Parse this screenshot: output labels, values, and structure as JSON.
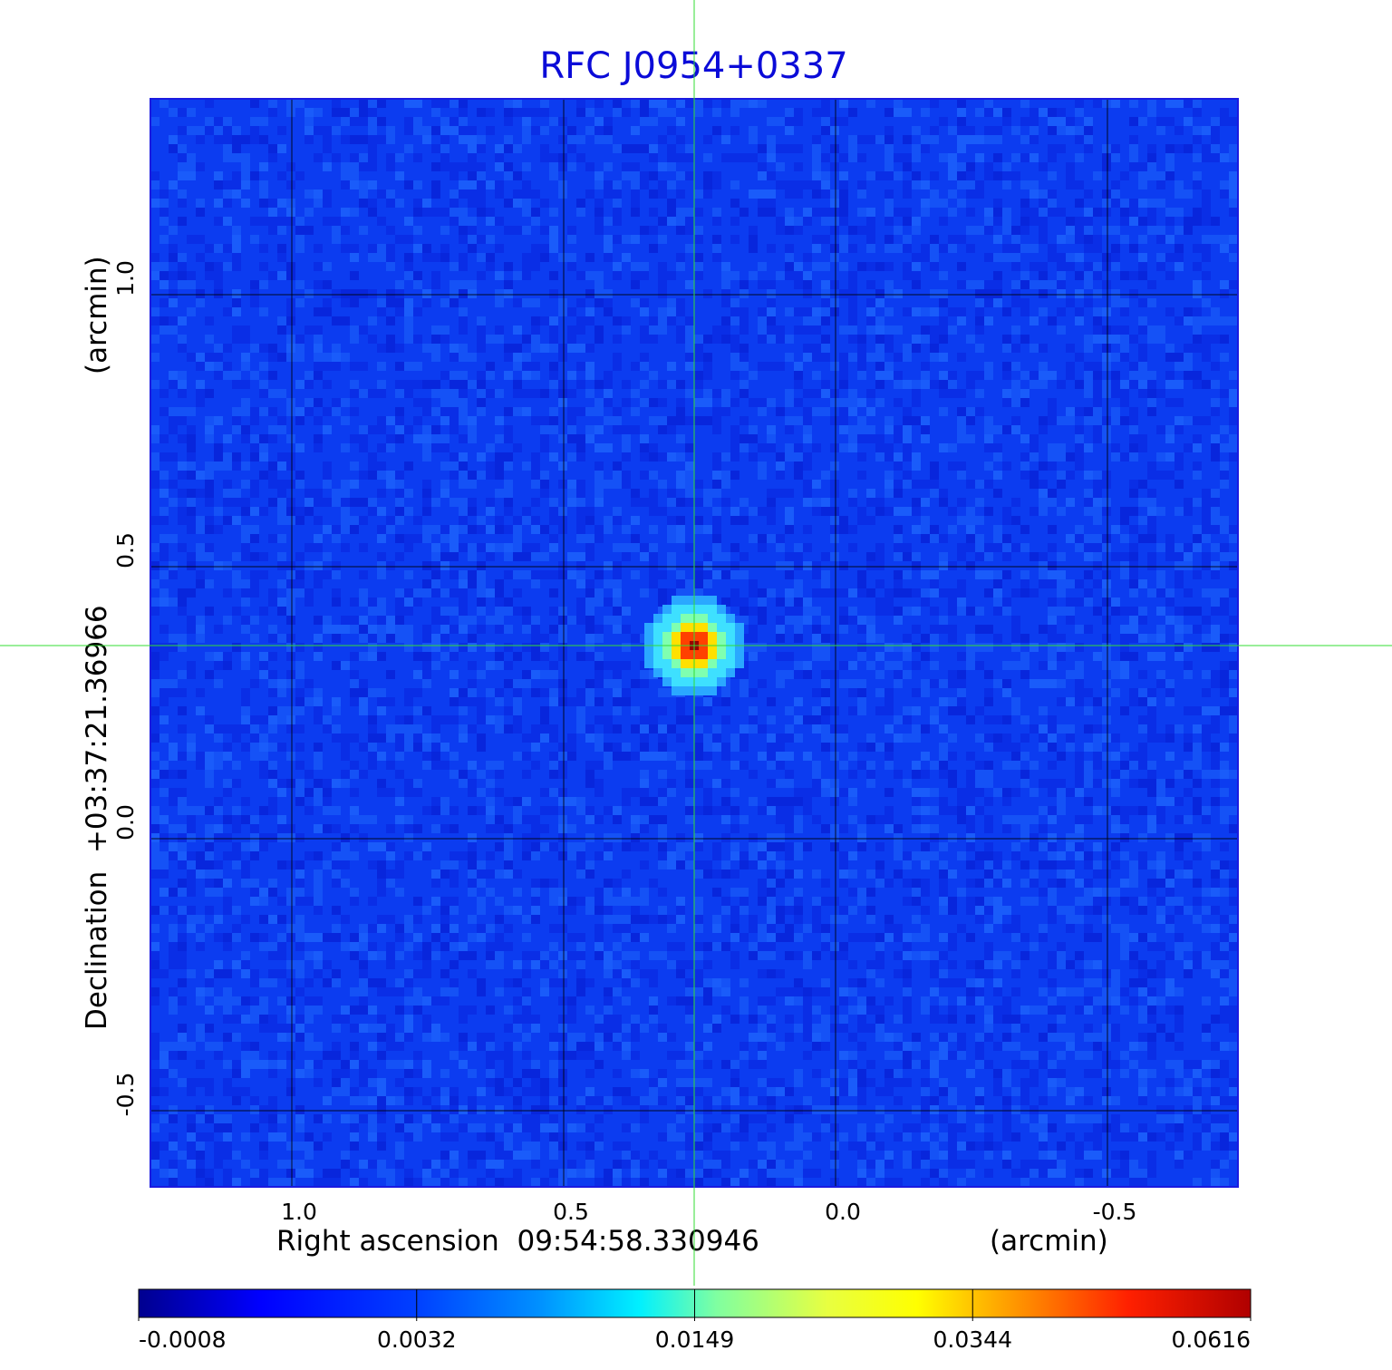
{
  "chart_data": {
    "type": "heatmap",
    "title": "RFC J0954+0337",
    "xlabel": "Right ascension  09:54:58.330946",
    "xunit": "(arcmin)",
    "ylabel": "Declination  +03:37:21.36966",
    "yunit": "(arcmin)",
    "x_axis_reversed": true,
    "xlim": [
      1.26,
      -0.74
    ],
    "ylim": [
      -0.64,
      1.36
    ],
    "x_ticks": [
      1.0,
      0.5,
      0.0,
      -0.5
    ],
    "x_tick_labels": [
      "1.0",
      "0.5",
      "0.0",
      "-0.5"
    ],
    "y_ticks": [
      -0.5,
      0.0,
      0.5,
      1.0
    ],
    "y_tick_labels": [
      "-0.5",
      "0.0",
      "0.5",
      "1.0"
    ],
    "grid": true,
    "crosshair": {
      "x": 0.26,
      "y": 0.355,
      "color": "#33dd33"
    },
    "source": {
      "x": 0.26,
      "y": 0.355,
      "peak": 0.0616
    },
    "colormap": "jet",
    "colorbar": {
      "orientation": "horizontal",
      "placement": "bottom",
      "ticks": [
        -0.0008,
        0.0032,
        0.0149,
        0.0344,
        0.0616
      ],
      "tick_labels": [
        "-0.0008",
        "0.0032",
        "0.0149",
        "0.0344",
        "0.0616"
      ]
    },
    "colors": {
      "title": "#0b0bd8",
      "frame": "#1a1ae0",
      "background_map": "#0c3cf0"
    }
  }
}
